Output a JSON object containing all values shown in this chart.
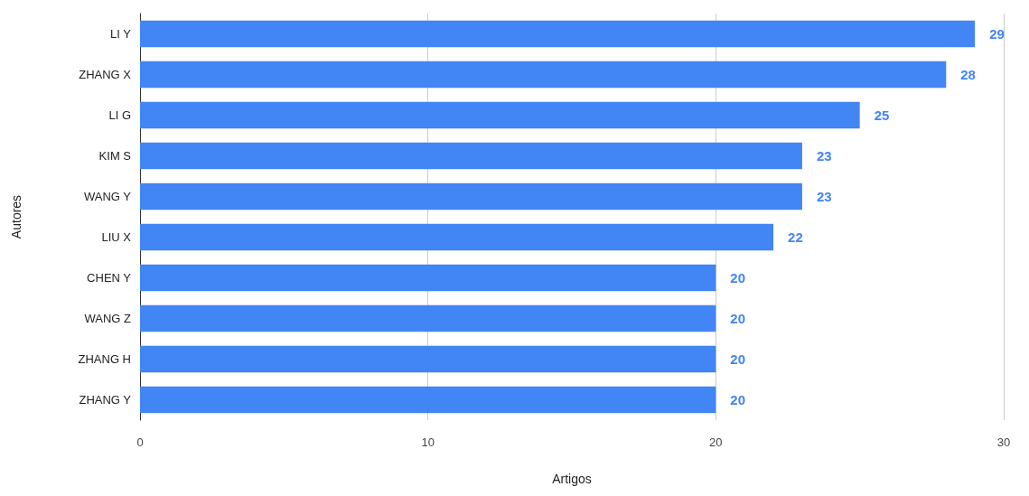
{
  "chart_data": {
    "type": "bar",
    "orientation": "horizontal",
    "xlabel": "Artigos",
    "ylabel": "Autores",
    "categories": [
      "LI Y",
      "ZHANG X",
      "LI G",
      "KIM S",
      "WANG Y",
      "LIU X",
      "CHEN Y",
      "WANG Z",
      "ZHANG H",
      "ZHANG Y"
    ],
    "values": [
      29,
      28,
      25,
      23,
      23,
      22,
      20,
      20,
      20,
      20
    ],
    "color": "#4285f4",
    "xlim": [
      0,
      30
    ],
    "xticks": [
      0,
      10,
      20,
      30
    ],
    "grid": "x",
    "data_labels": true
  }
}
